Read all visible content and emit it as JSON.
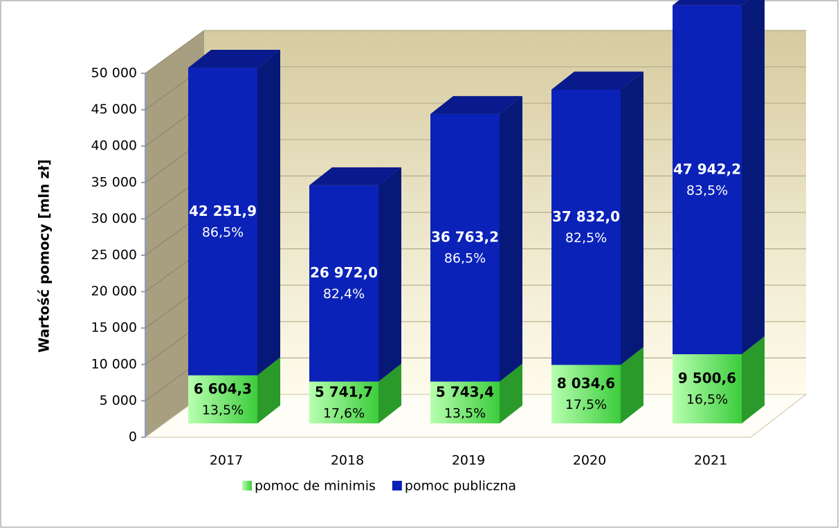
{
  "chart_data": {
    "type": "bar3d_stacked",
    "y_label": "Wartość pomocy [mln zł]",
    "categories": [
      "2017",
      "2018",
      "2019",
      "2020",
      "2021"
    ],
    "series": [
      {
        "name": "pomoc de minimis",
        "color": "#3ccc3c",
        "values": [
          6604.3,
          5741.7,
          5743.4,
          8034.6,
          9500.6
        ],
        "value_labels": [
          "6 604,3",
          "5 741,7",
          "5 743,4",
          "8 034,6",
          "9 500,6"
        ],
        "shares": [
          13.5,
          17.6,
          13.5,
          17.5,
          16.5
        ],
        "share_labels": [
          "13,5%",
          "17,6%",
          "13,5%",
          "17,5%",
          "16,5%"
        ]
      },
      {
        "name": "pomoc publiczna",
        "color": "#0a22b8",
        "values": [
          42251.9,
          26972.0,
          36763.2,
          37832.0,
          47942.2
        ],
        "value_labels": [
          "42 251,9",
          "26 972,0",
          "36 763,2",
          "37 832,0",
          "47 942,2"
        ],
        "shares": [
          86.5,
          82.4,
          86.5,
          82.5,
          83.5
        ],
        "share_labels": [
          "86,5%",
          "82,4%",
          "86,5%",
          "82,5%",
          "83,5%"
        ]
      }
    ],
    "ylim": [
      0,
      50000
    ],
    "yticks": [
      0,
      {
        "value": 5000,
        "label": "5 000"
      },
      {
        "value": 10000,
        "label": "10 000"
      },
      {
        "value": 15000,
        "label": "15 000"
      },
      {
        "value": 20000,
        "label": "20 000"
      },
      {
        "value": 25000,
        "label": "25 000"
      },
      {
        "value": 30000,
        "label": "30 000"
      },
      {
        "value": 35000,
        "label": "35 000"
      },
      {
        "value": 40000,
        "label": "40 000"
      },
      {
        "value": 45000,
        "label": "45 000"
      },
      {
        "value": 50000,
        "label": "50 000"
      }
    ],
    "grid": true,
    "legend": "bottom"
  }
}
